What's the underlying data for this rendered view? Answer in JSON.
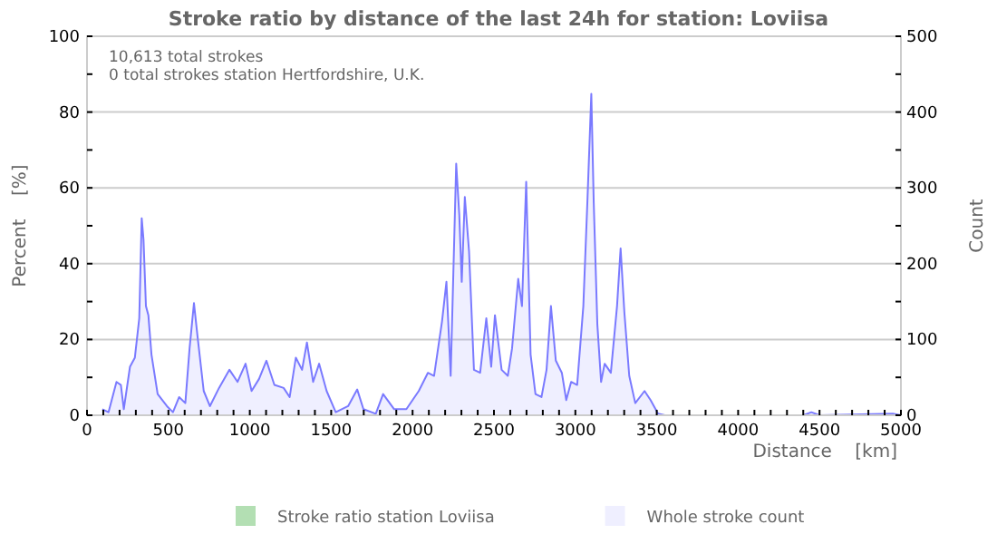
{
  "chart_data": {
    "type": "area",
    "title": "Stroke ratio by distance of the last 24h for station: Loviisa",
    "xlabel": "Distance    [km]",
    "ylabel": "Percent    [%]",
    "y2label": "Count",
    "annotations": [
      "10,613 total strokes",
      "0 total strokes station Hertfordshire, U.K."
    ],
    "xlim": [
      0,
      5000
    ],
    "xticks": [
      0,
      {
        "value": 100,
        "label": null
      },
      {
        "value": 200,
        "label": null
      },
      {
        "value": 300,
        "label": null
      },
      {
        "value": 400,
        "label": null
      },
      500,
      {
        "value": 600,
        "label": null
      },
      {
        "value": 700,
        "label": null
      },
      {
        "value": 800,
        "label": null
      },
      {
        "value": 900,
        "label": null
      },
      1000,
      {
        "value": 1100,
        "label": null
      },
      {
        "value": 1200,
        "label": null
      },
      {
        "value": 1300,
        "label": null
      },
      {
        "value": 1400,
        "label": null
      },
      1500,
      {
        "value": 1600,
        "label": null
      },
      {
        "value": 1700,
        "label": null
      },
      {
        "value": 1800,
        "label": null
      },
      {
        "value": 1900,
        "label": null
      },
      2000,
      {
        "value": 2100,
        "label": null
      },
      {
        "value": 2200,
        "label": null
      },
      {
        "value": 2300,
        "label": null
      },
      {
        "value": 2400,
        "label": null
      },
      2500,
      {
        "value": 2600,
        "label": null
      },
      {
        "value": 2700,
        "label": null
      },
      {
        "value": 2800,
        "label": null
      },
      {
        "value": 2900,
        "label": null
      },
      3000,
      {
        "value": 3100,
        "label": null
      },
      {
        "value": 3200,
        "label": null
      },
      {
        "value": 3300,
        "label": null
      },
      {
        "value": 3400,
        "label": null
      },
      3500,
      {
        "value": 3600,
        "label": null
      },
      {
        "value": 3700,
        "label": null
      },
      {
        "value": 3800,
        "label": null
      },
      {
        "value": 3900,
        "label": null
      },
      4000,
      {
        "value": 4100,
        "label": null
      },
      {
        "value": 4200,
        "label": null
      },
      {
        "value": 4300,
        "label": null
      },
      {
        "value": 4400,
        "label": null
      },
      4500,
      {
        "value": 4600,
        "label": null
      },
      {
        "value": 4700,
        "label": null
      },
      {
        "value": 4800,
        "label": null
      },
      {
        "value": 4900,
        "label": null
      },
      5000
    ],
    "ylim": [
      0,
      100
    ],
    "yticks": [
      0,
      {
        "value": 10,
        "label": null
      },
      20,
      {
        "value": 30,
        "label": null
      },
      40,
      {
        "value": 50,
        "label": null
      },
      60,
      {
        "value": 70,
        "label": null
      },
      80,
      {
        "value": 90,
        "label": null
      },
      100
    ],
    "y2lim": [
      0,
      500
    ],
    "y2ticks": [
      0,
      {
        "value": 50,
        "label": null
      },
      100,
      {
        "value": 150,
        "label": null
      },
      200,
      {
        "value": 250,
        "label": null
      },
      300,
      {
        "value": 350,
        "label": null
      },
      400,
      {
        "value": 450,
        "label": null
      },
      500
    ],
    "grid": "y",
    "legend": "bottom",
    "series": [
      {
        "name": "Stroke ratio station Loviisa",
        "color": "#b3dfb3"
      },
      {
        "name": "Whole stroke count",
        "color": "#7a7aff",
        "axis": "y2",
        "x": [
          94,
          132,
          181,
          208,
          226,
          264,
          294,
          321,
          336,
          347,
          362,
          377,
          396,
          434,
          491,
          528,
          566,
          604,
          630,
          657,
          679,
          717,
          755,
          811,
          875,
          925,
          974,
          1011,
          1057,
          1102,
          1151,
          1208,
          1245,
          1283,
          1321,
          1351,
          1389,
          1426,
          1472,
          1528,
          1604,
          1660,
          1698,
          1774,
          1819,
          1887,
          1962,
          2038,
          2094,
          2132,
          2181,
          2208,
          2234,
          2268,
          2287,
          2302,
          2321,
          2347,
          2377,
          2415,
          2453,
          2483,
          2506,
          2547,
          2585,
          2611,
          2649,
          2672,
          2698,
          2725,
          2755,
          2792,
          2823,
          2850,
          2880,
          2917,
          2944,
          2974,
          3011,
          3049,
          3075,
          3098,
          3113,
          3135,
          3158,
          3180,
          3218,
          3256,
          3278,
          3301,
          3331,
          3368,
          3425,
          3462,
          3508,
          3550,
          4400,
          4450,
          4500,
          4950,
          5000
        ],
        "values": [
          8,
          4,
          44,
          40,
          8,
          64,
          76,
          128,
          260,
          232,
          144,
          132,
          80,
          28,
          12,
          4,
          24,
          16,
          88,
          148,
          104,
          32,
          12,
          36,
          60,
          44,
          68,
          32,
          48,
          72,
          40,
          36,
          24,
          76,
          60,
          96,
          44,
          68,
          32,
          4,
          12,
          34,
          8,
          2,
          28,
          8,
          8,
          32,
          56,
          52,
          124,
          176,
          52,
          332,
          264,
          176,
          288,
          216,
          60,
          56,
          128,
          64,
          132,
          60,
          52,
          88,
          180,
          144,
          308,
          80,
          28,
          24,
          60,
          144,
          72,
          56,
          20,
          44,
          40,
          144,
          288,
          424,
          280,
          120,
          44,
          68,
          56,
          144,
          220,
          136,
          52,
          16,
          32,
          20,
          2,
          0,
          0,
          4,
          0,
          2,
          0
        ]
      }
    ]
  }
}
